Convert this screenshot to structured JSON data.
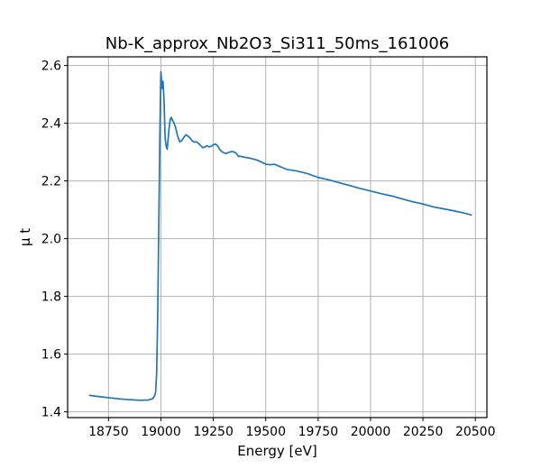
{
  "chart_data": {
    "type": "line",
    "title": "Nb-K_approx_Nb2O3_Si311_50ms_161006",
    "xlabel": "Energy [eV]",
    "ylabel": "μ t",
    "xlim": [
      18555,
      20555
    ],
    "ylim": [
      1.38,
      2.63
    ],
    "xticks": [
      18750,
      19000,
      19250,
      19500,
      19750,
      20000,
      20250,
      20500
    ],
    "yticks": [
      1.4,
      1.6,
      1.8,
      2.0,
      2.2,
      2.4,
      2.6
    ],
    "ytick_labels": [
      "1.4",
      "1.6",
      "1.8",
      "2.0",
      "2.2",
      "2.4",
      "2.6"
    ],
    "grid": true,
    "colors": {
      "line": "#1f77b4",
      "grid": "#b0b0b0",
      "frame": "#000000"
    },
    "series": [
      {
        "x": [
          18660,
          18700,
          18750,
          18800,
          18850,
          18900,
          18940,
          18960,
          18970,
          18975,
          18980,
          18985,
          18990,
          18995,
          18998,
          19000,
          19003,
          19006,
          19010,
          19015,
          19020,
          19025,
          19030,
          19035,
          19040,
          19045,
          19050,
          19055,
          19060,
          19070,
          19080,
          19090,
          19100,
          19110,
          19120,
          19130,
          19140,
          19150,
          19160,
          19170,
          19180,
          19190,
          19200,
          19210,
          19220,
          19230,
          19240,
          19250,
          19260,
          19270,
          19280,
          19290,
          19300,
          19310,
          19320,
          19330,
          19340,
          19350,
          19360,
          19370,
          19380,
          19400,
          19430,
          19460,
          19480,
          19500,
          19520,
          19540,
          19560,
          19580,
          19600,
          19650,
          19700,
          19750,
          19800,
          19850,
          19900,
          19950,
          20000,
          20050,
          20100,
          20150,
          20200,
          20250,
          20300,
          20350,
          20400,
          20450,
          20480
        ],
        "y": [
          1.457,
          1.453,
          1.449,
          1.445,
          1.442,
          1.44,
          1.441,
          1.445,
          1.455,
          1.47,
          1.54,
          1.75,
          2.05,
          2.36,
          2.5,
          2.578,
          2.55,
          2.52,
          2.545,
          2.48,
          2.35,
          2.32,
          2.31,
          2.35,
          2.39,
          2.415,
          2.42,
          2.41,
          2.405,
          2.385,
          2.355,
          2.335,
          2.34,
          2.352,
          2.36,
          2.355,
          2.348,
          2.338,
          2.335,
          2.335,
          2.33,
          2.322,
          2.315,
          2.318,
          2.322,
          2.318,
          2.32,
          2.325,
          2.328,
          2.322,
          2.31,
          2.302,
          2.298,
          2.295,
          2.298,
          2.3,
          2.302,
          2.3,
          2.295,
          2.285,
          2.285,
          2.282,
          2.278,
          2.272,
          2.265,
          2.258,
          2.256,
          2.258,
          2.252,
          2.246,
          2.24,
          2.234,
          2.225,
          2.212,
          2.204,
          2.194,
          2.184,
          2.174,
          2.165,
          2.156,
          2.148,
          2.138,
          2.128,
          2.12,
          2.11,
          2.103,
          2.096,
          2.088,
          2.082
        ]
      }
    ]
  }
}
